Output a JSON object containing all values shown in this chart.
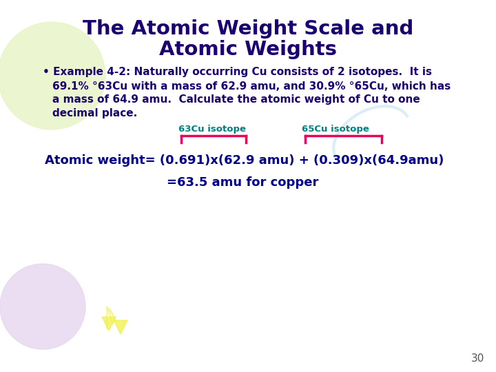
{
  "title_line1": "The Atomic Weight Scale and",
  "title_line2": "Atomic Weights",
  "title_color": "#1a0070",
  "bullet_line1": "• Example 4-2: Naturally occurring Cu consists of 2 isotopes.  It is",
  "bullet_line2": "69.1% °63Cu with a mass of 62.9 amu, and 30.9% °65Cu, which has",
  "bullet_line3": "a mass of 64.9 amu.  Calculate the atomic weight of Cu to one",
  "bullet_line4": "decimal place.",
  "bullet_color": "#1a0070",
  "label_63": "63Cu isotope",
  "label_65": "65Cu isotope",
  "label_color": "#008080",
  "bracket_color": "#e8005a",
  "formula_text": "Atomic weight= (0.691)x(62.9 amu) + (0.309)x(64.9amu)",
  "formula_color": "#00008b",
  "result_text": "=63.5 amu for copper",
  "result_color": "#00008b",
  "page_number": "30",
  "bg_color": "#ffffff",
  "balloon_topleft_color": "#e8f5c8",
  "balloon_botleft_color": "#e8d8f0",
  "balloon_yellow_color": "#f5f590"
}
